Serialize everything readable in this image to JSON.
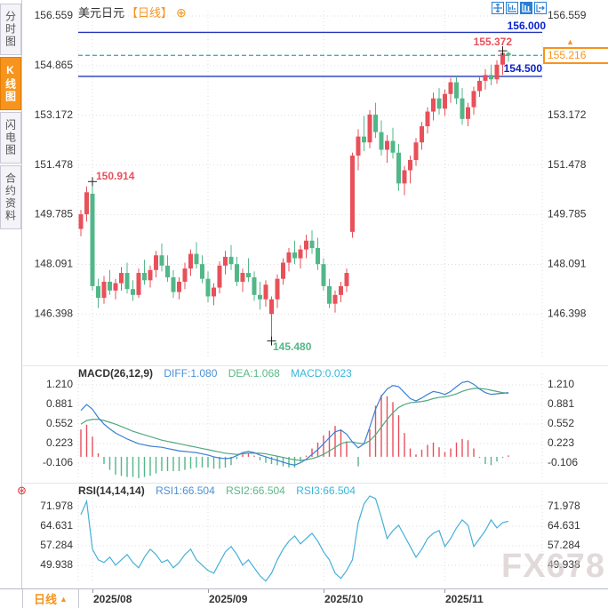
{
  "header": {
    "symbol": "美元日元",
    "period": "【日线】"
  },
  "icons": {
    "add": "⊕",
    "settings": "⊛",
    "price_marker": "▲"
  },
  "sidebar": {
    "tabs": [
      {
        "label": "分时图"
      },
      {
        "label": "K线图",
        "active": true
      },
      {
        "label": "闪电图"
      },
      {
        "label": "合约资料"
      }
    ]
  },
  "toolbar": {
    "icons": [
      {
        "name": "pan-crosshair"
      },
      {
        "name": "indicator-panel"
      },
      {
        "name": "candlestick-view",
        "active": true
      },
      {
        "name": "pop-out"
      }
    ]
  },
  "footer": {
    "period_label": "日线",
    "period_arrow": "▲"
  },
  "watermark": "FX678",
  "colors": {
    "up": "#e8505a",
    "down": "#52b788",
    "accent_orange": "#f7941d",
    "line_blue": "#2337b8",
    "label_blue": "#0a23cc",
    "dashed_cyan": "#3fa9dc",
    "diff_line": "#3b7fd4",
    "dea_line": "#52a87f",
    "rsi_line": "#45b0d8",
    "grid": "#dedee4"
  },
  "chart_data": [
    {
      "type": "candlestick",
      "title": "美元日元【日线】",
      "y_ticks": [
        156.559,
        154.865,
        153.172,
        151.478,
        149.785,
        148.091,
        146.398
      ],
      "x_ticks": [
        {
          "label": "2025/08",
          "index": 2
        },
        {
          "label": "2025/09",
          "index": 22
        },
        {
          "label": "2025/10",
          "index": 42
        },
        {
          "label": "2025/11",
          "index": 63
        }
      ],
      "hlines": [
        {
          "label": "156.000",
          "price": 156.0,
          "style": "solid",
          "role": "resistance"
        },
        {
          "label": "154.500",
          "price": 154.5,
          "style": "solid",
          "role": "support"
        },
        {
          "label": "155.216",
          "price": 155.216,
          "style": "dashed",
          "role": "current"
        }
      ],
      "current_price_label": "155.216",
      "annotations": [
        {
          "text": "155.372",
          "price": 155.372,
          "index": 73,
          "kind": "period-high"
        },
        {
          "text": "150.914",
          "price": 150.914,
          "index": 2,
          "kind": "swing-high"
        },
        {
          "text": "145.480",
          "price": 145.48,
          "index": 33,
          "kind": "period-low"
        }
      ],
      "candles": [
        [
          149.3,
          149.95,
          149.05,
          149.8
        ],
        [
          149.8,
          150.75,
          149.55,
          150.55
        ],
        [
          150.5,
          150.914,
          147.2,
          147.35
        ],
        [
          147.35,
          147.6,
          146.6,
          146.95
        ],
        [
          146.95,
          147.7,
          146.75,
          147.5
        ],
        [
          147.5,
          147.9,
          147.05,
          147.2
        ],
        [
          147.2,
          147.6,
          146.9,
          147.45
        ],
        [
          147.45,
          148.0,
          147.2,
          147.8
        ],
        [
          147.8,
          148.15,
          147.1,
          147.25
        ],
        [
          147.25,
          147.55,
          146.85,
          147.05
        ],
        [
          147.05,
          147.95,
          146.95,
          147.8
        ],
        [
          147.8,
          148.25,
          147.4,
          147.55
        ],
        [
          147.55,
          148.05,
          147.3,
          147.9
        ],
        [
          147.9,
          148.55,
          147.65,
          148.4
        ],
        [
          148.4,
          148.8,
          147.85,
          148.05
        ],
        [
          148.05,
          148.4,
          147.5,
          147.65
        ],
        [
          147.65,
          147.9,
          146.95,
          147.15
        ],
        [
          147.15,
          147.65,
          146.9,
          147.5
        ],
        [
          147.5,
          148.15,
          147.25,
          147.95
        ],
        [
          147.95,
          148.6,
          147.7,
          148.45
        ],
        [
          148.45,
          148.85,
          147.95,
          148.1
        ],
        [
          148.1,
          148.4,
          147.45,
          147.6
        ],
        [
          147.6,
          147.85,
          146.8,
          147.0
        ],
        [
          147.0,
          147.45,
          146.7,
          147.3
        ],
        [
          147.3,
          148.2,
          147.1,
          148.05
        ],
        [
          148.05,
          148.55,
          147.75,
          148.35
        ],
        [
          148.35,
          148.75,
          147.9,
          148.1
        ],
        [
          148.1,
          148.35,
          147.35,
          147.5
        ],
        [
          147.5,
          147.95,
          147.15,
          147.8
        ],
        [
          147.8,
          148.3,
          147.5,
          147.65
        ],
        [
          147.65,
          147.85,
          146.85,
          147.05
        ],
        [
          147.05,
          147.5,
          146.55,
          146.9
        ],
        [
          146.9,
          147.55,
          146.65,
          147.4
        ],
        [
          146.4,
          147.0,
          145.48,
          146.9
        ],
        [
          146.9,
          147.75,
          146.6,
          147.6
        ],
        [
          147.6,
          148.3,
          147.4,
          148.15
        ],
        [
          148.15,
          148.65,
          147.85,
          148.5
        ],
        [
          148.5,
          148.9,
          148.1,
          148.3
        ],
        [
          148.3,
          148.75,
          147.95,
          148.6
        ],
        [
          148.6,
          149.1,
          148.3,
          148.9
        ],
        [
          148.9,
          149.25,
          148.45,
          148.65
        ],
        [
          148.65,
          149.0,
          147.9,
          148.1
        ],
        [
          148.1,
          148.3,
          147.2,
          147.35
        ],
        [
          147.35,
          147.6,
          146.6,
          146.75
        ],
        [
          146.75,
          147.2,
          146.45,
          147.05
        ],
        [
          147.05,
          147.5,
          146.8,
          147.35
        ],
        [
          147.35,
          147.95,
          147.15,
          147.8
        ],
        [
          149.2,
          151.9,
          149.0,
          151.8
        ],
        [
          151.8,
          152.7,
          151.3,
          152.45
        ],
        [
          152.45,
          153.15,
          151.95,
          152.25
        ],
        [
          152.25,
          153.35,
          152.05,
          153.2
        ],
        [
          153.2,
          153.6,
          152.4,
          152.6
        ],
        [
          152.6,
          153.0,
          151.8,
          152.0
        ],
        [
          152.0,
          152.5,
          151.55,
          152.3
        ],
        [
          152.3,
          152.75,
          151.7,
          151.9
        ],
        [
          151.9,
          152.2,
          150.6,
          150.85
        ],
        [
          150.85,
          151.45,
          150.45,
          151.3
        ],
        [
          151.3,
          151.8,
          150.85,
          151.65
        ],
        [
          151.65,
          152.4,
          151.45,
          152.25
        ],
        [
          152.25,
          152.95,
          152.0,
          152.8
        ],
        [
          152.8,
          153.45,
          152.55,
          153.3
        ],
        [
          153.3,
          153.95,
          153.0,
          153.75
        ],
        [
          153.75,
          154.1,
          153.2,
          153.4
        ],
        [
          153.4,
          154.05,
          153.15,
          153.9
        ],
        [
          153.9,
          154.45,
          153.6,
          154.3
        ],
        [
          154.3,
          154.5,
          153.55,
          153.75
        ],
        [
          153.75,
          154.1,
          152.85,
          153.05
        ],
        [
          153.05,
          153.6,
          152.8,
          153.45
        ],
        [
          153.45,
          154.15,
          153.2,
          154.0
        ],
        [
          154.0,
          154.5,
          153.8,
          154.35
        ],
        [
          154.35,
          154.75,
          154.05,
          154.55
        ],
        [
          154.55,
          154.9,
          154.2,
          154.4
        ],
        [
          154.4,
          155.05,
          154.25,
          154.9
        ],
        [
          154.9,
          155.372,
          154.55,
          155.3
        ],
        [
          155.3,
          155.35,
          155.0,
          155.216
        ]
      ]
    },
    {
      "type": "line",
      "name": "MACD",
      "header": {
        "name": "MACD(26,12,9)",
        "diff": "DIFF:1.080",
        "dea": "DEA:1.068",
        "macd": "MACD:0.023"
      },
      "y_ticks": [
        1.21,
        0.881,
        0.552,
        0.223,
        -0.106
      ],
      "diff": [
        0.78,
        0.88,
        0.8,
        0.66,
        0.55,
        0.47,
        0.4,
        0.35,
        0.3,
        0.26,
        0.22,
        0.2,
        0.18,
        0.17,
        0.16,
        0.14,
        0.12,
        0.1,
        0.09,
        0.08,
        0.07,
        0.05,
        0.03,
        0.0,
        -0.02,
        -0.03,
        -0.02,
        0.02,
        0.07,
        0.09,
        0.07,
        0.03,
        0.0,
        -0.03,
        -0.06,
        -0.09,
        -0.12,
        -0.14,
        -0.1,
        -0.04,
        0.04,
        0.12,
        0.22,
        0.32,
        0.42,
        0.45,
        0.38,
        0.25,
        0.15,
        0.22,
        0.5,
        0.8,
        1.02,
        1.14,
        1.2,
        1.18,
        1.08,
        0.98,
        0.94,
        0.99,
        1.05,
        1.1,
        1.08,
        1.05,
        1.1,
        1.18,
        1.25,
        1.27,
        1.22,
        1.14,
        1.08,
        1.05,
        1.06,
        1.07,
        1.08
      ],
      "dea": [
        0.55,
        0.61,
        0.63,
        0.63,
        0.61,
        0.58,
        0.55,
        0.51,
        0.47,
        0.43,
        0.4,
        0.37,
        0.34,
        0.31,
        0.28,
        0.26,
        0.24,
        0.22,
        0.2,
        0.18,
        0.16,
        0.14,
        0.12,
        0.1,
        0.08,
        0.06,
        0.05,
        0.04,
        0.05,
        0.06,
        0.06,
        0.06,
        0.05,
        0.03,
        0.01,
        -0.01,
        -0.03,
        -0.05,
        -0.06,
        -0.05,
        -0.03,
        0.0,
        0.04,
        0.1,
        0.16,
        0.22,
        0.25,
        0.25,
        0.23,
        0.22,
        0.27,
        0.37,
        0.5,
        0.63,
        0.74,
        0.83,
        0.88,
        0.91,
        0.92,
        0.93,
        0.95,
        0.98,
        1.0,
        1.01,
        1.03,
        1.06,
        1.1,
        1.13,
        1.15,
        1.15,
        1.14,
        1.12,
        1.1,
        1.08,
        1.068
      ]
    },
    {
      "type": "line",
      "name": "RSI",
      "header": {
        "name": "RSI(14,14,14)",
        "rsi1": "RSI1:66.504",
        "rsi2": "RSI2:66.504",
        "rsi3": "RSI3:66.504"
      },
      "y_ticks": [
        71.978,
        64.631,
        57.284,
        49.938
      ],
      "values": [
        69,
        74,
        56,
        52,
        51,
        53,
        50,
        52,
        54,
        51,
        49,
        53,
        56,
        54,
        51,
        52,
        49,
        51,
        54,
        56,
        52,
        50,
        48,
        47,
        51,
        55,
        57,
        54,
        50,
        52,
        49,
        46,
        44,
        47,
        52,
        56,
        59,
        61,
        58,
        60,
        62,
        59,
        55,
        52,
        47,
        45,
        48,
        52,
        66,
        73,
        76,
        75,
        68,
        60,
        63,
        65,
        61,
        57,
        53,
        56,
        60,
        62,
        63,
        57,
        60,
        64,
        67,
        65,
        57,
        60,
        63,
        67,
        64,
        66,
        66.5
      ]
    }
  ]
}
